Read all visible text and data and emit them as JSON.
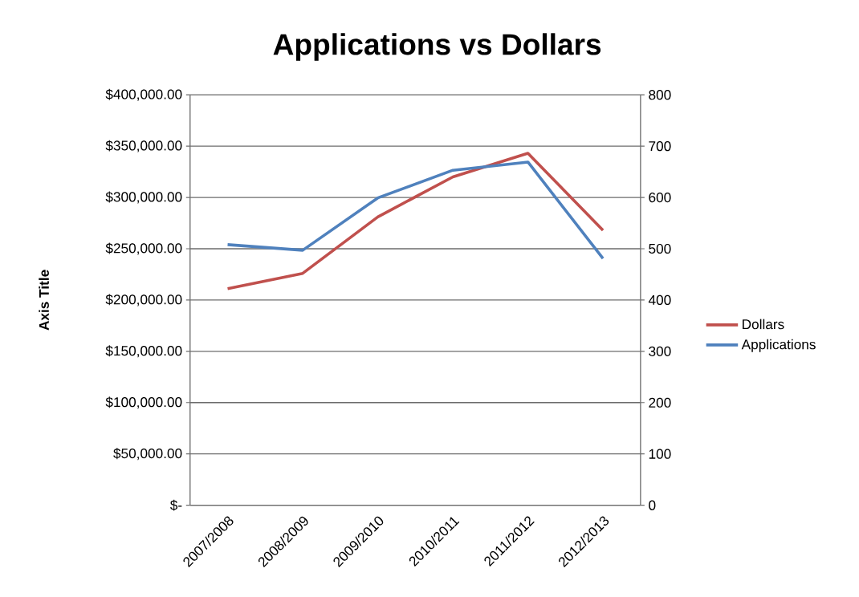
{
  "chart_data": {
    "type": "line",
    "title": "Applications vs Dollars",
    "ylabel": "Axis Title",
    "categories": [
      "2007/2008",
      "2008/2009",
      "2009/2010",
      "2010/2011",
      "2011/2012",
      "2012/2013"
    ],
    "series": [
      {
        "name": "Dollars",
        "color": "#c0504d",
        "values": [
          211000,
          226000,
          281000,
          320000,
          343000,
          268000
        ]
      },
      {
        "name": "Applications",
        "color": "#4f81bd",
        "axis": "y2",
        "values": [
          508,
          497,
          599,
          653,
          669,
          481
        ]
      }
    ],
    "ylim": [
      0,
      400000
    ],
    "yticks": [
      {
        "value": 0,
        "label": "$-"
      },
      {
        "value": 50000,
        "label": "$50,000.00"
      },
      {
        "value": 100000,
        "label": "$100,000.00"
      },
      {
        "value": 150000,
        "label": "$150,000.00"
      },
      {
        "value": 200000,
        "label": "$200,000.00"
      },
      {
        "value": 250000,
        "label": "$250,000.00"
      },
      {
        "value": 300000,
        "label": "$300,000.00"
      },
      {
        "value": 350000,
        "label": "$350,000.00"
      },
      {
        "value": 400000,
        "label": "$400,000.00"
      }
    ],
    "y2lim": [
      0,
      800
    ],
    "y2ticks": [
      0,
      100,
      200,
      300,
      400,
      500,
      600,
      700,
      800
    ],
    "grid": "y",
    "legend": "right",
    "marker": "none"
  }
}
